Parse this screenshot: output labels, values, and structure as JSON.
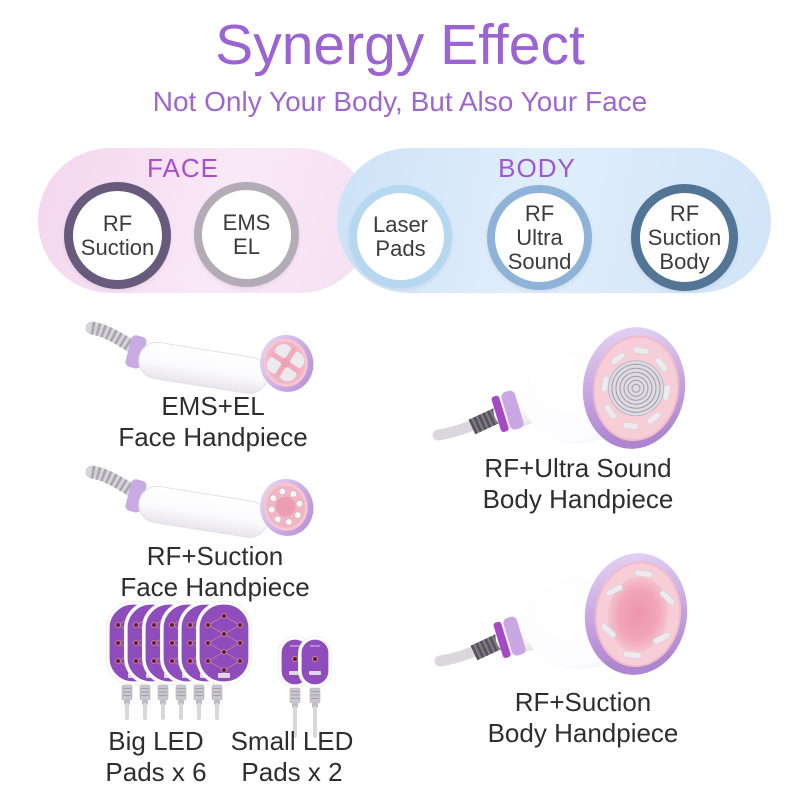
{
  "header": {
    "title": "Synergy Effect",
    "subtitle": "Not Only Your Body, But Also Your Face"
  },
  "banner": {
    "face": {
      "label": "FACE",
      "label_color": "#a94ecb",
      "bg_color": "#f6ddf2",
      "items": [
        {
          "label": "RF Suction",
          "ring": "#675a7d"
        },
        {
          "label": "EMS EL",
          "ring": "#b3acb6"
        }
      ]
    },
    "body": {
      "label": "BODY",
      "label_color": "#9d59ce",
      "bg_color": "#d6e8f9",
      "items": [
        {
          "label": "Laser Pads",
          "ring": "#b5d7f0"
        },
        {
          "label": "RF Ultra Sound",
          "ring": "#8fb2d8"
        },
        {
          "label": "RF Suction Body",
          "ring": "#527495"
        }
      ]
    }
  },
  "products": [
    {
      "id": "ems-el-face-handpiece",
      "line1": "EMS+EL",
      "line2": "Face Handpiece"
    },
    {
      "id": "rf-ultra-sound-body-handpiece",
      "line1": "RF+Ultra Sound",
      "line2": "Body Handpiece"
    },
    {
      "id": "rf-suction-face-handpiece",
      "line1": "RF+Suction",
      "line2": "Face Handpiece"
    },
    {
      "id": "rf-suction-body-handpiece",
      "line1": "RF+Suction",
      "line2": "Body Handpiece"
    },
    {
      "id": "big-led-pads",
      "line1": "Big LED",
      "line2": "Pads x 6"
    },
    {
      "id": "small-led-pads",
      "line1": "Small LED",
      "line2": "Pads x 2"
    }
  ],
  "colors": {
    "title": "#9c63d2",
    "subtitle": "#9e66cf",
    "label_text": "#2e2e2e",
    "device_lavender": "#c9abe3",
    "device_pink": "#f3b4c3",
    "pad_purple": "#8f4cbd"
  }
}
